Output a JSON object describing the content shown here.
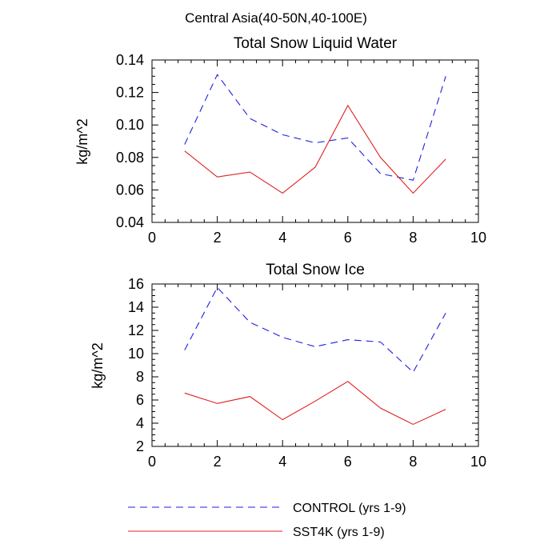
{
  "main_title": "Central Asia(40-50N,40-100E)",
  "legend": [
    {
      "label": "CONTROL (yrs 1-9)",
      "color": "#1f1fe0",
      "dashed": true
    },
    {
      "label": "SST4K (yrs 1-9)",
      "color": "#e02020",
      "dashed": false
    }
  ],
  "chart_data": [
    {
      "type": "line",
      "title": "Total Snow Liquid Water",
      "xlabel": "",
      "ylabel": "kg/m^2",
      "xlim": [
        0,
        10
      ],
      "ylim": [
        0.04,
        0.14
      ],
      "xticks": [
        0,
        2,
        4,
        6,
        8,
        10
      ],
      "xtick_labels": [
        "0",
        "2",
        "4",
        "6",
        "8",
        "10"
      ],
      "yticks": [
        0.04,
        0.06,
        0.08,
        0.1,
        0.12,
        0.14
      ],
      "ytick_labels": [
        "0.04",
        "0.06",
        "0.08",
        "0.10",
        "0.12",
        "0.14"
      ],
      "x_minor_step": 0.4,
      "y_minor_step": 0.005,
      "x": [
        1,
        2,
        3,
        4,
        5,
        6,
        7,
        8,
        9
      ],
      "series": [
        {
          "name": "CONTROL (yrs 1-9)",
          "color": "#1f1fe0",
          "dashed": true,
          "values": [
            0.088,
            0.131,
            0.104,
            0.094,
            0.089,
            0.092,
            0.07,
            0.066,
            0.13
          ]
        },
        {
          "name": "SST4K (yrs 1-9)",
          "color": "#e02020",
          "dashed": false,
          "values": [
            0.084,
            0.068,
            0.071,
            0.058,
            0.074,
            0.112,
            0.08,
            0.058,
            0.079
          ]
        }
      ]
    },
    {
      "type": "line",
      "title": "Total Snow Ice",
      "xlabel": "",
      "ylabel": "kg/m^2",
      "xlim": [
        0,
        10
      ],
      "ylim": [
        2,
        16
      ],
      "xticks": [
        0,
        2,
        4,
        6,
        8,
        10
      ],
      "xtick_labels": [
        "0",
        "2",
        "4",
        "6",
        "8",
        "10"
      ],
      "yticks": [
        2,
        4,
        6,
        8,
        10,
        12,
        14,
        16
      ],
      "ytick_labels": [
        "2",
        "4",
        "6",
        "8",
        "10",
        "12",
        "14",
        "16"
      ],
      "x_minor_step": 0.4,
      "y_minor_step": 0.5,
      "x": [
        1,
        2,
        3,
        4,
        5,
        6,
        7,
        8,
        9
      ],
      "series": [
        {
          "name": "CONTROL (yrs 1-9)",
          "color": "#1f1fe0",
          "dashed": true,
          "values": [
            10.3,
            15.7,
            12.7,
            11.4,
            10.6,
            11.2,
            11.0,
            8.4,
            13.5
          ]
        },
        {
          "name": "SST4K (yrs 1-9)",
          "color": "#e02020",
          "dashed": false,
          "values": [
            6.6,
            5.7,
            6.3,
            4.3,
            5.9,
            7.6,
            5.3,
            3.9,
            5.2
          ]
        }
      ]
    }
  ]
}
